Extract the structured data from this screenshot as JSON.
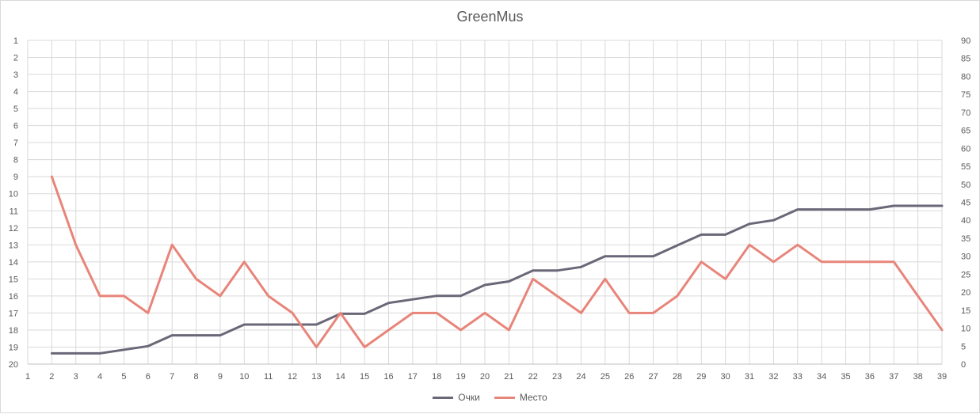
{
  "chart_data": {
    "type": "line",
    "title": "GreenMus",
    "x": [
      1,
      2,
      3,
      4,
      5,
      6,
      7,
      8,
      9,
      10,
      11,
      12,
      13,
      14,
      15,
      16,
      17,
      18,
      19,
      20,
      21,
      22,
      23,
      24,
      25,
      26,
      27,
      28,
      29,
      30,
      31,
      32,
      33,
      34,
      35,
      36,
      37,
      38,
      39
    ],
    "left_axis": {
      "ticks": [
        1,
        2,
        3,
        4,
        5,
        6,
        7,
        8,
        9,
        10,
        11,
        12,
        13,
        14,
        15,
        16,
        17,
        18,
        19,
        20
      ],
      "reversed": true,
      "range": [
        1,
        20
      ]
    },
    "right_axis": {
      "ticks": [
        0,
        5,
        10,
        15,
        20,
        25,
        30,
        35,
        40,
        45,
        50,
        55,
        60,
        65,
        70,
        75,
        80,
        85,
        90
      ],
      "range": [
        0,
        90
      ]
    },
    "grid": true,
    "legend_position": "bottom",
    "series": [
      {
        "name": "Очки",
        "axis": "right",
        "color": "#6b6778",
        "x": [
          2,
          3,
          4,
          5,
          6,
          7,
          8,
          9,
          10,
          11,
          12,
          13,
          14,
          15,
          16,
          17,
          18,
          19,
          20,
          21,
          22,
          23,
          24,
          25,
          26,
          27,
          28,
          29,
          30,
          31,
          32,
          33,
          34,
          35,
          36,
          37,
          38,
          39
        ],
        "values": [
          3,
          3,
          3,
          4,
          5,
          8,
          8,
          8,
          11,
          11,
          11,
          11,
          14,
          14,
          17,
          18,
          19,
          19,
          22,
          23,
          26,
          26,
          27,
          30,
          30,
          30,
          33,
          36,
          36,
          39,
          40,
          43,
          43,
          43,
          43,
          44,
          44,
          44
        ]
      },
      {
        "name": "Место",
        "axis": "left",
        "color": "#e8857a",
        "x": [
          2,
          3,
          4,
          5,
          6,
          7,
          8,
          9,
          10,
          11,
          12,
          13,
          14,
          15,
          16,
          17,
          18,
          19,
          20,
          21,
          22,
          23,
          24,
          25,
          26,
          27,
          28,
          29,
          30,
          31,
          32,
          33,
          34,
          35,
          36,
          37,
          38,
          39
        ],
        "values": [
          9,
          13,
          16,
          16,
          17,
          13,
          15,
          16,
          14,
          16,
          17,
          19,
          17,
          19,
          18,
          17,
          17,
          18,
          17,
          18,
          15,
          16,
          17,
          15,
          17,
          17,
          16,
          14,
          15,
          13,
          14,
          13,
          14,
          14,
          14,
          14,
          16,
          18
        ]
      }
    ]
  }
}
